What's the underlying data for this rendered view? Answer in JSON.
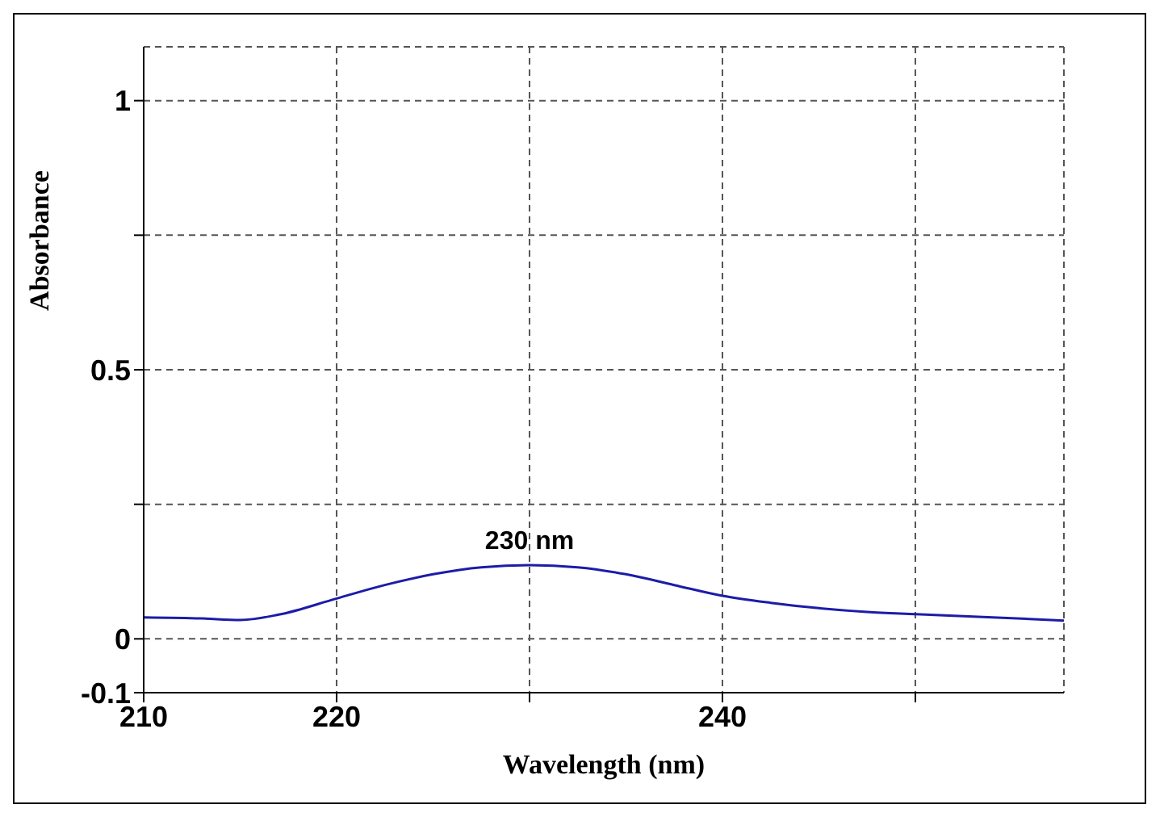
{
  "chart_data": {
    "type": "line",
    "xlabel": "Wavelength (nm)",
    "ylabel": "Absorbance",
    "x": [
      210,
      213,
      215,
      217,
      220,
      222.5,
      225,
      227.5,
      230,
      232.5,
      235,
      237.5,
      240,
      242.5,
      245,
      247.5,
      250,
      254,
      257.7
    ],
    "series": [
      {
        "color": "#1c1ca8",
        "values": [
          0.04,
          0.038,
          0.035,
          0.045,
          0.075,
          0.1,
          0.12,
          0.133,
          0.137,
          0.133,
          0.12,
          0.1,
          0.08,
          0.067,
          0.057,
          0.05,
          0.046,
          0.04,
          0.034
        ]
      }
    ],
    "xlim": [
      210,
      257.7
    ],
    "xticks": [
      210,
      220,
      {
        "value": 230,
        "label": null
      },
      240,
      {
        "value": 250,
        "label": null
      }
    ],
    "ylim": [
      -0.1,
      1.1
    ],
    "yticks": [
      -0.1,
      0,
      {
        "value": 0.25,
        "label": null
      },
      0.5,
      {
        "value": 0.75,
        "label": null
      },
      1
    ],
    "grid": true,
    "marker": "none",
    "line_style": "solid",
    "annotations": [
      {
        "text": "230 nm",
        "x": 230,
        "y": 0.137
      }
    ]
  }
}
